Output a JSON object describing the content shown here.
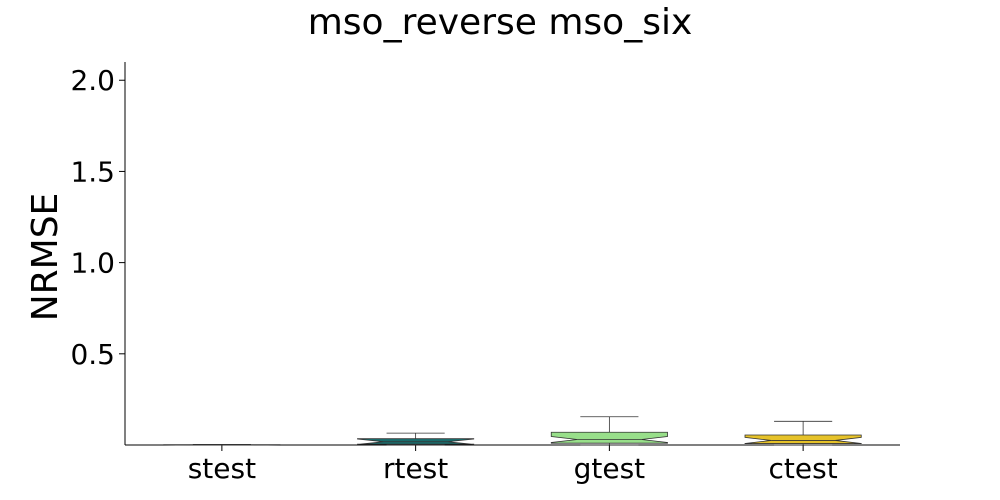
{
  "chart_data": {
    "type": "box",
    "title": "mso_reverse mso_six",
    "xlabel": "",
    "ylabel": "NRMSE",
    "categories": [
      "stest",
      "rtest",
      "gtest",
      "ctest"
    ],
    "ylim": [
      0.0,
      2.1
    ],
    "yticks": [
      0.5,
      1.0,
      1.5,
      2.0
    ],
    "ytick_labels": [
      "0.5",
      "1.0",
      "1.5",
      "2.0"
    ],
    "grid": false,
    "notched": true,
    "boxes": [
      {
        "category": "stest",
        "whisker_low": 0.0,
        "q1": 0.0,
        "median": 0.0,
        "q3": 0.002,
        "whisker_high": 0.003,
        "color": "#1f3b73"
      },
      {
        "category": "rtest",
        "whisker_low": 0.0,
        "q1": 0.005,
        "median": 0.018,
        "q3": 0.035,
        "whisker_high": 0.065,
        "color": "#1a6b6b"
      },
      {
        "category": "gtest",
        "whisker_low": 0.0,
        "q1": 0.01,
        "median": 0.03,
        "q3": 0.07,
        "whisker_high": 0.155,
        "color": "#98df8a"
      },
      {
        "category": "ctest",
        "whisker_low": 0.0,
        "q1": 0.008,
        "median": 0.025,
        "q3": 0.055,
        "whisker_high": 0.13,
        "color": "#e6c229"
      }
    ]
  }
}
